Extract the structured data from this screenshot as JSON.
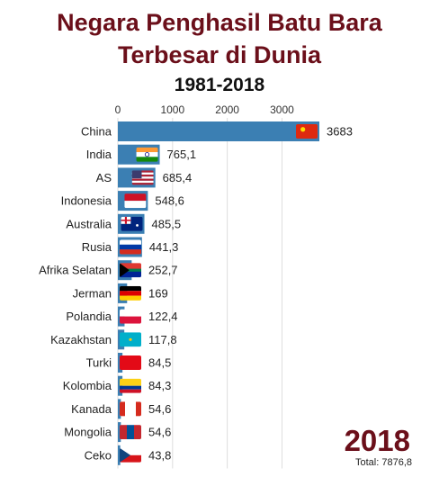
{
  "header": {
    "title_line1": "Negara Penghasil Batu Bara",
    "title_line2": "Terbesar di Dunia",
    "subtitle": "1981-2018"
  },
  "year_label": "2018",
  "total_label": "Total: 7876,8",
  "chart_data": {
    "type": "bar",
    "orientation": "horizontal",
    "title": "Negara Penghasil Batu Bara Terbesar di Dunia",
    "subtitle": "1981-2018",
    "categories": [
      "China",
      "India",
      "AS",
      "Indonesia",
      "Australia",
      "Rusia",
      "Afrika Selatan",
      "Jerman",
      "Polandia",
      "Kazakhstan",
      "Turki",
      "Kolombia",
      "Kanada",
      "Mongolia",
      "Ceko"
    ],
    "values": [
      3683,
      765.1,
      685.4,
      548.6,
      485.5,
      441.3,
      252.7,
      169,
      122.4,
      117.8,
      84.5,
      84.3,
      54.6,
      54.6,
      43.8
    ],
    "value_labels": [
      "3683",
      "765,1",
      "685,4",
      "548,6",
      "485,5",
      "441,3",
      "252,7",
      "169",
      "122,4",
      "117,8",
      "84,5",
      "84,3",
      "54,6",
      "54,6",
      "43,8"
    ],
    "ticks": [
      0,
      1000,
      2000,
      3000
    ],
    "xlim": [
      0,
      3683
    ],
    "grid": true,
    "bar_color": "#3b7fb3",
    "flag_icons": [
      "china-flag-icon",
      "india-flag-icon",
      "usa-flag-icon",
      "indonesia-flag-icon",
      "australia-flag-icon",
      "russia-flag-icon",
      "south-africa-flag-icon",
      "germany-flag-icon",
      "poland-flag-icon",
      "kazakhstan-flag-icon",
      "turkey-flag-icon",
      "colombia-flag-icon",
      "canada-flag-icon",
      "mongolia-flag-icon",
      "czech-flag-icon"
    ]
  }
}
